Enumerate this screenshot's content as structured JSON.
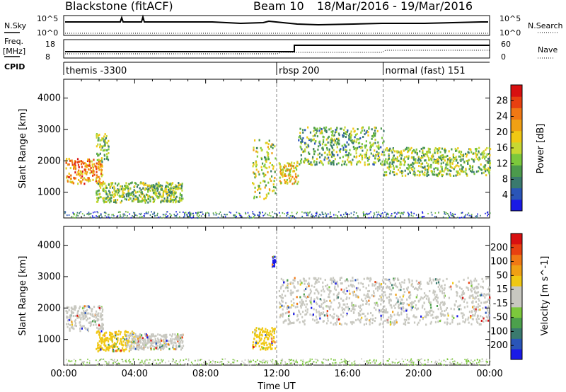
{
  "header": {
    "station": "Blackstone (fitACF)",
    "beam": "Beam 10",
    "dates": "18/Mar/2016 - 19/Mar/2016"
  },
  "aux_panels": {
    "nsky_label": "N.Sky",
    "nsky_ticks": [
      "10^5",
      "10^0"
    ],
    "nsearch_label": "N.Search",
    "nsearch_ticks": [
      "10^5",
      "10^0"
    ],
    "freq_label": "Freq.",
    "freq_unit": "[MHz]",
    "freq_ticks": [
      "18",
      "8"
    ],
    "nave_label": "Nave",
    "nave_ticks": [
      "60",
      "0"
    ],
    "cpid_label": "CPID",
    "cpid_segments": [
      {
        "label": "themis -3300",
        "start_hour": 0
      },
      {
        "label": "rbsp 200",
        "start_hour": 12
      },
      {
        "label": "normal (fast) 151",
        "start_hour": 18
      }
    ]
  },
  "chart_data": [
    {
      "type": "heatmap",
      "name": "power",
      "ylabel": "Slant Range [km]",
      "xlim": [
        0,
        24
      ],
      "ylim": [
        180,
        4600
      ],
      "yticks": [
        "1000",
        "2000",
        "3000",
        "4000"
      ],
      "colorbar_label": "Power [dB]",
      "colorbar_ticks": [
        "4",
        "8",
        "12",
        "16",
        "20",
        "24",
        "28"
      ],
      "colorbar_colors": [
        "#1a1ae6",
        "#2a55b8",
        "#3a7a6e",
        "#4c9a4c",
        "#7cc83c",
        "#c8d832",
        "#f0c814",
        "#f0a014",
        "#f07814",
        "#e84010",
        "#d81010"
      ],
      "features": [
        {
          "from_hour": 0.1,
          "to_hour": 2.2,
          "range_km": [
            1300,
            2100
          ],
          "level": 0.75
        },
        {
          "from_hour": 1.8,
          "to_hour": 2.5,
          "range_km": [
            2000,
            2900
          ],
          "level": 0.4
        },
        {
          "from_hour": 1.8,
          "to_hour": 6.7,
          "range_km": [
            700,
            1350
          ],
          "level": 0.4
        },
        {
          "from_hour": 10.6,
          "to_hour": 11.9,
          "range_km": [
            800,
            2700
          ],
          "level": 0.45
        },
        {
          "from_hour": 12.1,
          "to_hour": 13.2,
          "range_km": [
            1300,
            2000
          ],
          "level": 0.6
        },
        {
          "from_hour": 13.2,
          "to_hour": 18.0,
          "range_km": [
            1900,
            3100
          ],
          "level": 0.35
        },
        {
          "from_hour": 18.0,
          "to_hour": 24.0,
          "range_km": [
            1550,
            2450
          ],
          "level": 0.4
        }
      ]
    },
    {
      "type": "heatmap",
      "name": "velocity",
      "ylabel": "Slant Range [km]",
      "xlabel": "Time UT",
      "xlim": [
        0,
        24
      ],
      "ylim": [
        180,
        4600
      ],
      "xticks": [
        "00:00",
        "04:00",
        "08:00",
        "12:00",
        "16:00",
        "20:00",
        "00:00"
      ],
      "yticks": [
        "1000",
        "2000",
        "3000",
        "4000"
      ],
      "colorbar_label": "Velocity [m s^-1]",
      "colorbar_ticks": [
        "200",
        "100",
        "50",
        "15",
        "-15",
        "-50",
        "-100",
        "-200"
      ],
      "colorbar_colors": [
        "#1a1ae6",
        "#2a55b8",
        "#3a7a6e",
        "#4ca04c",
        "#7cc83c",
        "#c8c8c0",
        "#c8c8c0",
        "#f0c814",
        "#f0a014",
        "#f07814",
        "#e84010",
        "#d81010"
      ],
      "features": [
        {
          "from_hour": 0.1,
          "to_hour": 2.2,
          "range_km": [
            1300,
            2100
          ],
          "color": "#c8c8c0"
        },
        {
          "from_hour": 1.8,
          "to_hour": 4.0,
          "range_km": [
            650,
            1300
          ],
          "color": "#f0c814"
        },
        {
          "from_hour": 3.5,
          "to_hour": 6.7,
          "range_km": [
            700,
            1200
          ],
          "color": "#c8c8c0"
        },
        {
          "from_hour": 10.6,
          "to_hour": 11.9,
          "range_km": [
            700,
            1400
          ],
          "color": "#f0c814"
        },
        {
          "from_hour": 11.7,
          "to_hour": 11.9,
          "range_km": [
            3200,
            3700
          ],
          "color": "#1a1ae6"
        },
        {
          "from_hour": 12.1,
          "to_hour": 24.0,
          "range_km": [
            1500,
            3000
          ],
          "color": "#c8c8c0"
        }
      ]
    }
  ]
}
